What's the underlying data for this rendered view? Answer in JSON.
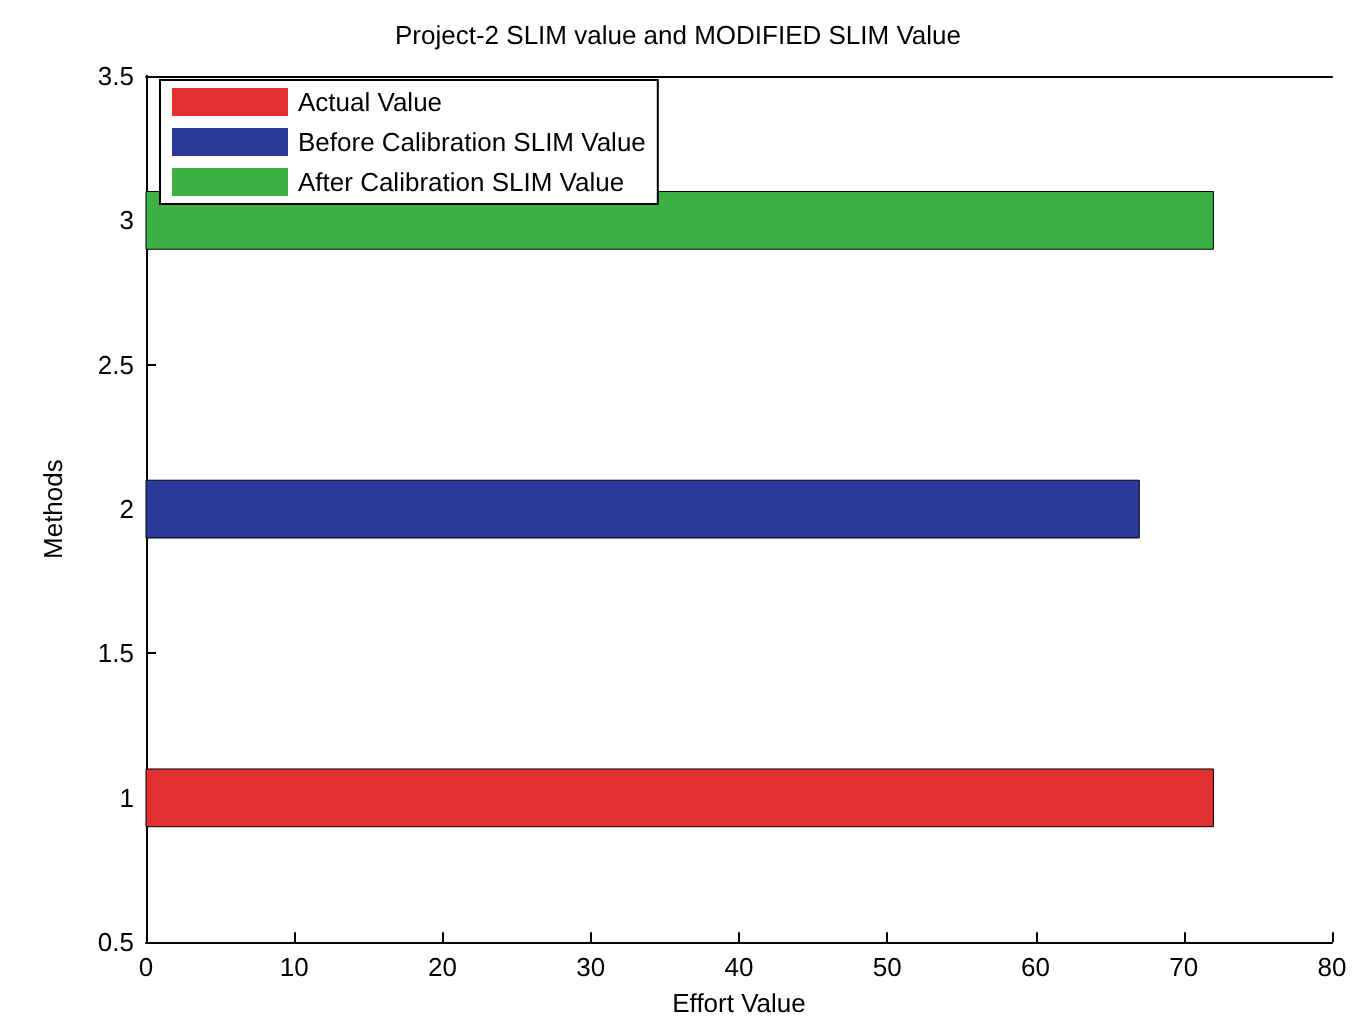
{
  "chart_data": {
    "type": "bar",
    "orientation": "horizontal",
    "title": "Project-2 SLIM value and MODIFIED SLIM Value",
    "xlabel": "Effort Value",
    "ylabel": "Methods",
    "series": [
      {
        "name": "Actual Value",
        "color": "#e03030",
        "x": [
          1
        ],
        "values": [
          72
        ]
      },
      {
        "name": "Before Calibration SLIM Value",
        "color": "#2b3a9a",
        "x": [
          2
        ],
        "values": [
          67
        ]
      },
      {
        "name": "After Calibration SLIM Value",
        "color": "#3cb043",
        "x": [
          3
        ],
        "values": [
          72
        ]
      }
    ],
    "xlim": [
      0,
      80
    ],
    "xticks": [
      0,
      10,
      20,
      30,
      40,
      50,
      60,
      70,
      80
    ],
    "ylim": [
      0.5,
      3.5
    ],
    "yticks": [
      0.5,
      1,
      1.5,
      2,
      2.5,
      3,
      3.5
    ],
    "grid": false,
    "legend": "top left"
  }
}
